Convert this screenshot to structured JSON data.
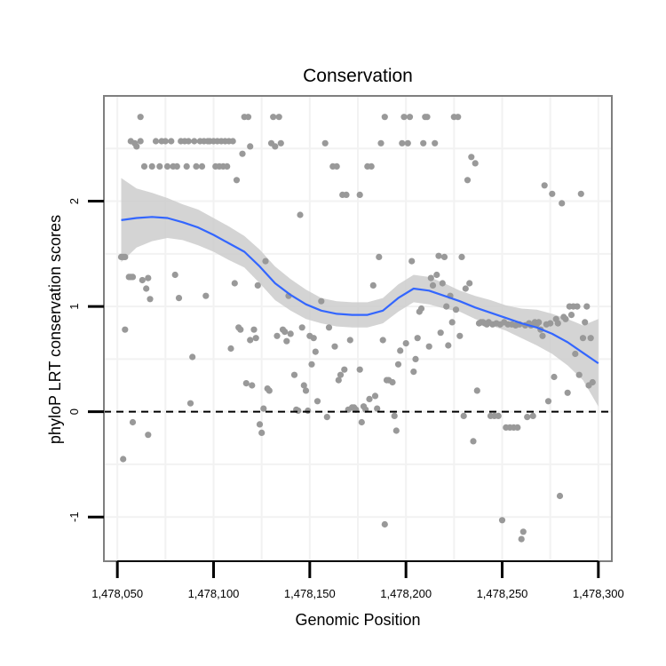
{
  "chart_data": {
    "type": "scatter",
    "title": "Conservation",
    "xlabel": "Genomic Position",
    "ylabel": "phyloP LRT conservation scores",
    "xlim": [
      1478043,
      1478307
    ],
    "ylim": [
      -1.42,
      3.0
    ],
    "xticks": [
      1478050,
      1478100,
      1478150,
      1478200,
      1478250,
      1478300
    ],
    "xtick_labels": [
      "1,478,050",
      "1,478,100",
      "1,478,150",
      "1,478,200",
      "1,478,250",
      "1,478,300"
    ],
    "yticks": [
      -1,
      0,
      1,
      2
    ],
    "ytick_labels": [
      "-1",
      "0",
      "1",
      "2"
    ],
    "hline": 0,
    "colors": {
      "points": "#999999",
      "smooth": "#3366ff",
      "band": "#cccccc",
      "panel_border": "#7f7f7f",
      "grid": "#f2f2f2"
    },
    "points": [
      [
        1478052,
        1.47
      ],
      [
        1478053,
        1.47
      ],
      [
        1478054,
        1.47
      ],
      [
        1478053,
        -0.45
      ],
      [
        1478054,
        0.78
      ],
      [
        1478056,
        1.28
      ],
      [
        1478057,
        1.28
      ],
      [
        1478058,
        1.28
      ],
      [
        1478057,
        2.57
      ],
      [
        1478059,
        2.55
      ],
      [
        1478060,
        2.52
      ],
      [
        1478058,
        -0.1
      ],
      [
        1478062,
        2.8
      ],
      [
        1478062,
        2.57
      ],
      [
        1478063,
        1.25
      ],
      [
        1478064,
        2.33
      ],
      [
        1478065,
        1.17
      ],
      [
        1478066,
        1.27
      ],
      [
        1478066,
        -0.22
      ],
      [
        1478067,
        1.07
      ],
      [
        1478068,
        2.33
      ],
      [
        1478070,
        2.57
      ],
      [
        1478072,
        2.33
      ],
      [
        1478073,
        2.57
      ],
      [
        1478075,
        2.57
      ],
      [
        1478076,
        2.33
      ],
      [
        1478078,
        2.57
      ],
      [
        1478079,
        2.33
      ],
      [
        1478080,
        1.3
      ],
      [
        1478081,
        2.33
      ],
      [
        1478082,
        1.08
      ],
      [
        1478083,
        2.57
      ],
      [
        1478085,
        2.57
      ],
      [
        1478086,
        2.33
      ],
      [
        1478087,
        2.57
      ],
      [
        1478088,
        0.08
      ],
      [
        1478089,
        0.52
      ],
      [
        1478090,
        2.57
      ],
      [
        1478091,
        2.33
      ],
      [
        1478093,
        2.57
      ],
      [
        1478094,
        2.33
      ],
      [
        1478095,
        2.57
      ],
      [
        1478096,
        1.1
      ],
      [
        1478097,
        2.57
      ],
      [
        1478098,
        2.57
      ],
      [
        1478100,
        2.57
      ],
      [
        1478101,
        2.33
      ],
      [
        1478102,
        2.57
      ],
      [
        1478103,
        2.33
      ],
      [
        1478104,
        2.57
      ],
      [
        1478105,
        2.33
      ],
      [
        1478106,
        2.57
      ],
      [
        1478107,
        2.33
      ],
      [
        1478108,
        2.57
      ],
      [
        1478109,
        0.6
      ],
      [
        1478110,
        2.57
      ],
      [
        1478111,
        1.22
      ],
      [
        1478112,
        2.2
      ],
      [
        1478113,
        0.8
      ],
      [
        1478114,
        0.78
      ],
      [
        1478115,
        2.45
      ],
      [
        1478116,
        2.8
      ],
      [
        1478117,
        0.27
      ],
      [
        1478118,
        2.8
      ],
      [
        1478119,
        2.52
      ],
      [
        1478119,
        0.68
      ],
      [
        1478120,
        0.25
      ],
      [
        1478121,
        0.78
      ],
      [
        1478122,
        0.7
      ],
      [
        1478123,
        1.2
      ],
      [
        1478124,
        -0.12
      ],
      [
        1478125,
        -0.2
      ],
      [
        1478126,
        0.03
      ],
      [
        1478127,
        1.43
      ],
      [
        1478128,
        0.22
      ],
      [
        1478129,
        0.2
      ],
      [
        1478130,
        2.55
      ],
      [
        1478131,
        2.8
      ],
      [
        1478132,
        2.52
      ],
      [
        1478133,
        0.72
      ],
      [
        1478134,
        2.8
      ],
      [
        1478135,
        2.55
      ],
      [
        1478136,
        0.78
      ],
      [
        1478137,
        0.76
      ],
      [
        1478138,
        0.67
      ],
      [
        1478139,
        1.1
      ],
      [
        1478140,
        0.74
      ],
      [
        1478142,
        0.35
      ],
      [
        1478143,
        0.02
      ],
      [
        1478144,
        0.01
      ],
      [
        1478145,
        1.87
      ],
      [
        1478146,
        0.8
      ],
      [
        1478147,
        0.25
      ],
      [
        1478148,
        0.2
      ],
      [
        1478149,
        0.01
      ],
      [
        1478150,
        0.72
      ],
      [
        1478151,
        0.45
      ],
      [
        1478152,
        0.7
      ],
      [
        1478153,
        0.57
      ],
      [
        1478154,
        0.1
      ],
      [
        1478156,
        1.05
      ],
      [
        1478158,
        2.55
      ],
      [
        1478159,
        -0.05
      ],
      [
        1478160,
        0.8
      ],
      [
        1478162,
        2.33
      ],
      [
        1478163,
        0.62
      ],
      [
        1478164,
        2.33
      ],
      [
        1478165,
        0.3
      ],
      [
        1478166,
        0.35
      ],
      [
        1478167,
        2.06
      ],
      [
        1478168,
        0.4
      ],
      [
        1478169,
        2.06
      ],
      [
        1478170,
        0.02
      ],
      [
        1478171,
        0.68
      ],
      [
        1478172,
        0.04
      ],
      [
        1478173,
        0.04
      ],
      [
        1478174,
        0.02
      ],
      [
        1478176,
        2.06
      ],
      [
        1478176,
        0.4
      ],
      [
        1478177,
        -0.1
      ],
      [
        1478178,
        0.05
      ],
      [
        1478179,
        0.02
      ],
      [
        1478180,
        2.33
      ],
      [
        1478181,
        0.12
      ],
      [
        1478182,
        2.33
      ],
      [
        1478183,
        1.2
      ],
      [
        1478184,
        0.15
      ],
      [
        1478185,
        0.03
      ],
      [
        1478186,
        1.47
      ],
      [
        1478187,
        2.55
      ],
      [
        1478188,
        0.68
      ],
      [
        1478189,
        2.8
      ],
      [
        1478189,
        -1.07
      ],
      [
        1478190,
        0.3
      ],
      [
        1478191,
        0.3
      ],
      [
        1478193,
        0.28
      ],
      [
        1478194,
        -0.04
      ],
      [
        1478195,
        -0.18
      ],
      [
        1478196,
        0.45
      ],
      [
        1478197,
        0.58
      ],
      [
        1478198,
        2.55
      ],
      [
        1478199,
        2.8
      ],
      [
        1478200,
        0.65
      ],
      [
        1478201,
        2.55
      ],
      [
        1478202,
        2.8
      ],
      [
        1478203,
        1.43
      ],
      [
        1478204,
        0.38
      ],
      [
        1478205,
        0.5
      ],
      [
        1478206,
        0.7
      ],
      [
        1478207,
        0.95
      ],
      [
        1478208,
        0.98
      ],
      [
        1478209,
        2.55
      ],
      [
        1478210,
        2.8
      ],
      [
        1478211,
        2.8
      ],
      [
        1478212,
        0.62
      ],
      [
        1478213,
        1.27
      ],
      [
        1478214,
        1.2
      ],
      [
        1478215,
        2.55
      ],
      [
        1478216,
        1.3
      ],
      [
        1478217,
        1.48
      ],
      [
        1478218,
        0.75
      ],
      [
        1478219,
        1.22
      ],
      [
        1478220,
        1.47
      ],
      [
        1478221,
        1.0
      ],
      [
        1478222,
        0.63
      ],
      [
        1478223,
        1.1
      ],
      [
        1478224,
        0.85
      ],
      [
        1478225,
        2.8
      ],
      [
        1478226,
        0.97
      ],
      [
        1478227,
        2.8
      ],
      [
        1478228,
        0.72
      ],
      [
        1478229,
        1.47
      ],
      [
        1478230,
        -0.04
      ],
      [
        1478231,
        1.17
      ],
      [
        1478232,
        2.2
      ],
      [
        1478233,
        1.22
      ],
      [
        1478234,
        2.42
      ],
      [
        1478235,
        -0.28
      ],
      [
        1478236,
        2.36
      ],
      [
        1478237,
        0.2
      ],
      [
        1478238,
        0.84
      ],
      [
        1478239,
        0.85
      ],
      [
        1478240,
        0.85
      ],
      [
        1478241,
        0.84
      ],
      [
        1478242,
        0.83
      ],
      [
        1478243,
        0.85
      ],
      [
        1478244,
        -0.04
      ],
      [
        1478245,
        0.83
      ],
      [
        1478246,
        -0.04
      ],
      [
        1478247,
        0.84
      ],
      [
        1478248,
        -0.04
      ],
      [
        1478249,
        0.83
      ],
      [
        1478250,
        -1.03
      ],
      [
        1478251,
        0.85
      ],
      [
        1478252,
        -0.15
      ],
      [
        1478253,
        0.83
      ],
      [
        1478254,
        -0.15
      ],
      [
        1478255,
        0.83
      ],
      [
        1478256,
        -0.15
      ],
      [
        1478257,
        0.82
      ],
      [
        1478258,
        -0.15
      ],
      [
        1478259,
        0.83
      ],
      [
        1478260,
        -1.21
      ],
      [
        1478261,
        -1.14
      ],
      [
        1478262,
        0.82
      ],
      [
        1478263,
        -0.05
      ],
      [
        1478264,
        0.84
      ],
      [
        1478265,
        0.82
      ],
      [
        1478266,
        -0.04
      ],
      [
        1478267,
        0.85
      ],
      [
        1478268,
        0.83
      ],
      [
        1478269,
        0.85
      ],
      [
        1478270,
        0.78
      ],
      [
        1478271,
        0.72
      ],
      [
        1478272,
        2.15
      ],
      [
        1478273,
        0.83
      ],
      [
        1478274,
        0.1
      ],
      [
        1478275,
        0.84
      ],
      [
        1478276,
        2.07
      ],
      [
        1478277,
        0.33
      ],
      [
        1478278,
        0.88
      ],
      [
        1478279,
        0.84
      ],
      [
        1478280,
        -0.8
      ],
      [
        1478281,
        1.98
      ],
      [
        1478282,
        0.9
      ],
      [
        1478283,
        0.88
      ],
      [
        1478284,
        0.18
      ],
      [
        1478285,
        1.0
      ],
      [
        1478286,
        0.92
      ],
      [
        1478287,
        1.0
      ],
      [
        1478288,
        0.55
      ],
      [
        1478289,
        1.0
      ],
      [
        1478290,
        0.35
      ],
      [
        1478291,
        2.07
      ],
      [
        1478292,
        0.7
      ],
      [
        1478293,
        0.85
      ],
      [
        1478294,
        1.0
      ],
      [
        1478295,
        0.25
      ],
      [
        1478296,
        0.7
      ],
      [
        1478297,
        0.28
      ]
    ],
    "smooth": {
      "x": [
        1478052,
        1478060,
        1478068,
        1478076,
        1478084,
        1478092,
        1478100,
        1478108,
        1478116,
        1478124,
        1478132,
        1478140,
        1478148,
        1478156,
        1478164,
        1478172,
        1478180,
        1478188,
        1478196,
        1478204,
        1478212,
        1478220,
        1478228,
        1478236,
        1478244,
        1478252,
        1478260,
        1478268,
        1478276,
        1478284,
        1478292,
        1478300
      ],
      "y": [
        1.82,
        1.84,
        1.85,
        1.84,
        1.8,
        1.75,
        1.68,
        1.6,
        1.52,
        1.38,
        1.22,
        1.11,
        1.02,
        0.96,
        0.93,
        0.92,
        0.92,
        0.96,
        1.08,
        1.17,
        1.15,
        1.1,
        1.05,
        0.99,
        0.94,
        0.89,
        0.84,
        0.8,
        0.74,
        0.66,
        0.56,
        0.46
      ],
      "lo": [
        1.42,
        1.56,
        1.62,
        1.65,
        1.63,
        1.58,
        1.52,
        1.44,
        1.37,
        1.22,
        1.06,
        0.96,
        0.88,
        0.84,
        0.81,
        0.8,
        0.8,
        0.84,
        0.95,
        1.04,
        1.02,
        0.98,
        0.95,
        0.88,
        0.82,
        0.77,
        0.7,
        0.63,
        0.55,
        0.44,
        0.3,
        0.05
      ],
      "hi": [
        2.22,
        2.12,
        2.08,
        2.03,
        1.97,
        1.92,
        1.84,
        1.76,
        1.67,
        1.54,
        1.38,
        1.26,
        1.16,
        1.08,
        1.05,
        1.04,
        1.04,
        1.08,
        1.21,
        1.3,
        1.28,
        1.22,
        1.15,
        1.1,
        1.06,
        1.01,
        0.98,
        0.97,
        0.93,
        0.88,
        0.82,
        0.88
      ]
    }
  }
}
